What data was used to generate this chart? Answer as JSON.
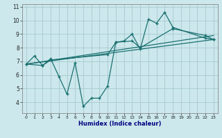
{
  "xlabel": "Humidex (Indice chaleur)",
  "background_color": "#cce8ec",
  "grid_color": "#aacdd4",
  "line_color": "#1a7070",
  "series_jagged": {
    "x": [
      0,
      1,
      2,
      3,
      4,
      5,
      6,
      7,
      8,
      9,
      10,
      11,
      12,
      13,
      14,
      15,
      16,
      17,
      18,
      22,
      23
    ],
    "y": [
      6.8,
      7.4,
      6.7,
      7.2,
      5.9,
      4.6,
      6.9,
      3.7,
      4.3,
      4.3,
      5.2,
      8.4,
      8.5,
      9.0,
      7.9,
      10.1,
      9.8,
      10.6,
      9.5,
      8.7,
      8.6
    ]
  },
  "series_smooth": {
    "x": [
      0,
      2,
      3,
      10,
      11,
      13,
      14,
      18,
      22,
      23
    ],
    "y": [
      6.8,
      6.7,
      7.1,
      7.5,
      8.4,
      8.5,
      8.0,
      9.4,
      8.9,
      8.6
    ]
  },
  "trend1": {
    "x": [
      0,
      23
    ],
    "y": [
      6.8,
      8.9
    ]
  },
  "trend2": {
    "x": [
      0,
      23
    ],
    "y": [
      6.8,
      8.6
    ]
  },
  "xlim": [
    -0.5,
    23.5
  ],
  "ylim": [
    3.2,
    11.2
  ],
  "yticks": [
    4,
    5,
    6,
    7,
    8,
    9,
    10,
    11
  ],
  "xticks": [
    0,
    1,
    2,
    3,
    4,
    5,
    6,
    7,
    8,
    9,
    10,
    11,
    12,
    13,
    14,
    15,
    16,
    17,
    18,
    19,
    20,
    21,
    22,
    23
  ]
}
